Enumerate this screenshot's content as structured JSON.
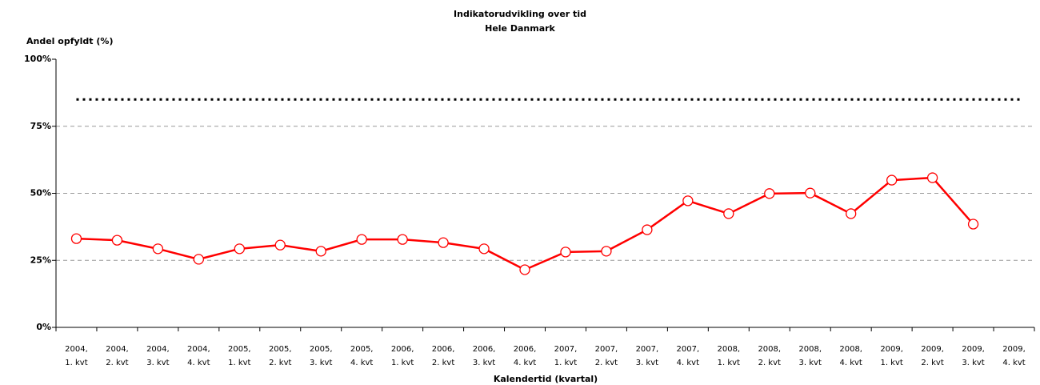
{
  "chart_data": {
    "type": "line",
    "title": "Indikatorudvikling over tid",
    "subtitle": "Hele Danmark",
    "y_label": "Andel opfyldt (%)",
    "x_label": "Kalendertid (kvartal)",
    "categories": [
      [
        "2004,",
        "1. kvt"
      ],
      [
        "2004,",
        "2. kvt"
      ],
      [
        "2004,",
        "3. kvt"
      ],
      [
        "2004,",
        "4. kvt"
      ],
      [
        "2005,",
        "1. kvt"
      ],
      [
        "2005,",
        "2. kvt"
      ],
      [
        "2005,",
        "3. kvt"
      ],
      [
        "2005,",
        "4. kvt"
      ],
      [
        "2006,",
        "1. kvt"
      ],
      [
        "2006,",
        "2. kvt"
      ],
      [
        "2006,",
        "3. kvt"
      ],
      [
        "2006,",
        "4. kvt"
      ],
      [
        "2007,",
        "1. kvt"
      ],
      [
        "2007,",
        "2. kvt"
      ],
      [
        "2007,",
        "3. kvt"
      ],
      [
        "2007,",
        "4. kvt"
      ],
      [
        "2008,",
        "1. kvt"
      ],
      [
        "2008,",
        "2. kvt"
      ],
      [
        "2008,",
        "3. kvt"
      ],
      [
        "2008,",
        "4. kvt"
      ],
      [
        "2009,",
        "1. kvt"
      ],
      [
        "2009,",
        "2. kvt"
      ],
      [
        "2009,",
        "3. kvt"
      ],
      [
        "2009,",
        "4. kvt"
      ]
    ],
    "values": [
      33.1,
      32.5,
      29.3,
      25.4,
      29.3,
      30.7,
      28.4,
      32.8,
      32.8,
      31.6,
      29.3,
      21.5,
      28.1,
      28.4,
      36.4,
      47.2,
      42.4,
      49.9,
      50.1,
      42.4,
      54.9,
      55.8,
      38.5,
      null
    ],
    "color": "#ff0000",
    "reference_line": 85,
    "ylim": [
      0,
      100
    ],
    "yticks": [
      {
        "value": 0,
        "label": "0%"
      },
      {
        "value": 25,
        "label": "25%"
      },
      {
        "value": 50,
        "label": "50%"
      },
      {
        "value": 75,
        "label": "75%"
      },
      {
        "value": 100,
        "label": "100%"
      }
    ],
    "grid": true
  }
}
